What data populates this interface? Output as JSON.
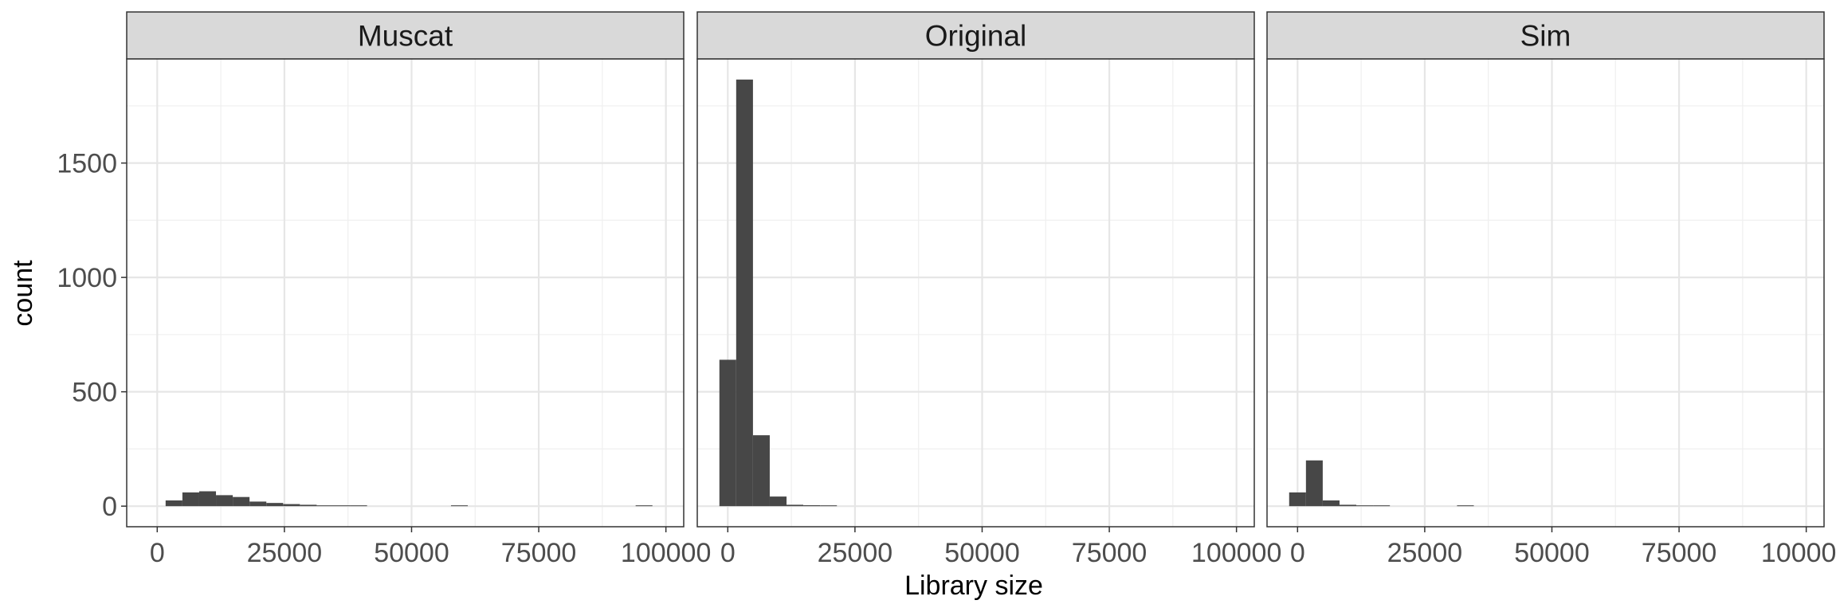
{
  "chart_data": {
    "type": "bar",
    "subtype": "faceted-histogram",
    "xlabel": "Library size",
    "ylabel": "count",
    "xlim": [
      -6000,
      103500
    ],
    "ylim": [
      -90,
      1955
    ],
    "x_ticks": [
      0,
      25000,
      50000,
      75000,
      100000
    ],
    "x_tick_labels": [
      "0",
      "25000",
      "50000",
      "75000",
      "100000"
    ],
    "y_ticks": [
      0,
      500,
      1000,
      1500
    ],
    "y_tick_labels": [
      "0",
      "500",
      "1000",
      "1500"
    ],
    "grid": true,
    "bin_width": 3300,
    "bar_color": "#474747",
    "facets": [
      {
        "name": "Muscat",
        "bins": [
          {
            "x": 3300,
            "count": 25
          },
          {
            "x": 6600,
            "count": 60
          },
          {
            "x": 9900,
            "count": 65
          },
          {
            "x": 13200,
            "count": 48
          },
          {
            "x": 16500,
            "count": 40
          },
          {
            "x": 19800,
            "count": 20
          },
          {
            "x": 23100,
            "count": 14
          },
          {
            "x": 26400,
            "count": 9
          },
          {
            "x": 29700,
            "count": 6
          },
          {
            "x": 33000,
            "count": 3
          },
          {
            "x": 36300,
            "count": 2
          },
          {
            "x": 39600,
            "count": 2
          },
          {
            "x": 59400,
            "count": 1
          },
          {
            "x": 95700,
            "count": 1
          }
        ]
      },
      {
        "name": "Original",
        "bins": [
          {
            "x": 0,
            "count": 640
          },
          {
            "x": 3300,
            "count": 1865
          },
          {
            "x": 6600,
            "count": 310
          },
          {
            "x": 9900,
            "count": 42
          },
          {
            "x": 13200,
            "count": 6
          },
          {
            "x": 16500,
            "count": 4
          },
          {
            "x": 19800,
            "count": 2
          }
        ]
      },
      {
        "name": "Sim",
        "bins": [
          {
            "x": 0,
            "count": 60
          },
          {
            "x": 3300,
            "count": 200
          },
          {
            "x": 6600,
            "count": 25
          },
          {
            "x": 9900,
            "count": 6
          },
          {
            "x": 13200,
            "count": 3
          },
          {
            "x": 16500,
            "count": 2
          },
          {
            "x": 33000,
            "count": 1
          }
        ]
      }
    ]
  }
}
